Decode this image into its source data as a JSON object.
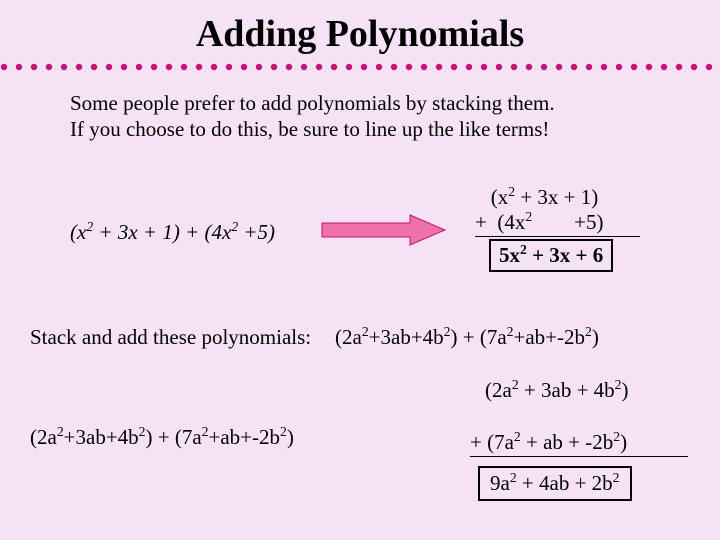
{
  "title": "Adding Polynomials",
  "dots": {
    "color": "#c71277",
    "radius": 3.2,
    "gap": 15,
    "count": 49
  },
  "intro_line1": "Some people prefer to add polynomials by stacking them.",
  "intro_line2": "If you choose to do this, be sure to line up the like terms!",
  "example1": {
    "left_expr_html": "(<i>x</i><sup>2</sup> + 3<i>x</i> + 1) + (4<i>x</i><sup>2</sup> +5)",
    "stack_row1_html": "   (x<sup>2</sup> + 3x + 1)",
    "stack_row2_html": "+  (4x<sup>2</sup>        +5)",
    "result_html": "5x<sup>2</sup> + 3x + 6"
  },
  "arrow": {
    "fill": "#ef71a9",
    "stroke": "#c71277"
  },
  "label2": "Stack and add these polynomials:",
  "example2_expr_html": "(2a<sup>2</sup>+3ab+4b<sup>2</sup>) + (7a<sup>2</sup>+ab+-2b<sup>2</sup>)",
  "example2": {
    "left_expr_html": "(2a<sup>2</sup>+3ab+4b<sup>2</sup>) + (7a<sup>2</sup>+ab+-2b<sup>2</sup>)",
    "stack_row1_html": "(2a<sup>2</sup> + 3ab + 4b<sup>2</sup>)",
    "stack_row2_html": "+  (7a<sup>2</sup> + ab + -2b<sup>2</sup>)",
    "result_html": "9a<sup>2</sup> + 4ab + 2b<sup>2</sup>"
  }
}
